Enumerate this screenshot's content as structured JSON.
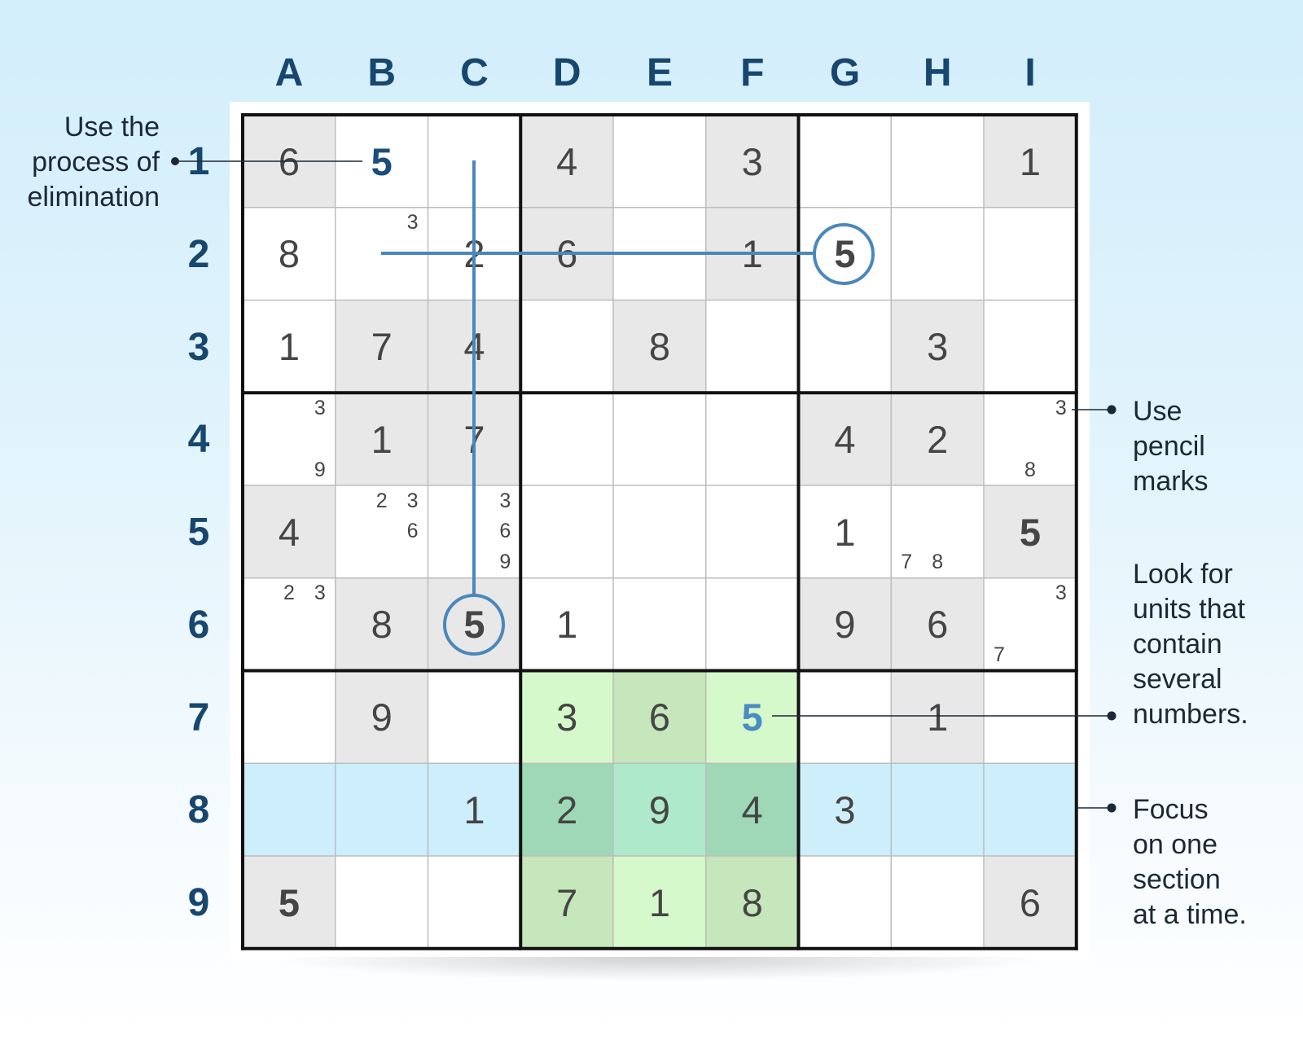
{
  "columns": [
    "A",
    "B",
    "C",
    "D",
    "E",
    "F",
    "G",
    "H",
    "I"
  ],
  "rows": [
    "1",
    "2",
    "3",
    "4",
    "5",
    "6",
    "7",
    "8",
    "9"
  ],
  "board": [
    [
      "6",
      "5",
      "",
      "4",
      "",
      "3",
      "",
      "",
      "1"
    ],
    [
      "8",
      "",
      "2",
      "6",
      "",
      "1",
      "5",
      "",
      ""
    ],
    [
      "1",
      "7",
      "4",
      "",
      "8",
      "",
      "",
      "3",
      ""
    ],
    [
      "",
      "1",
      "7",
      "",
      "",
      "",
      "4",
      "2",
      ""
    ],
    [
      "4",
      "",
      "",
      "",
      "",
      "",
      "1",
      "",
      "5"
    ],
    [
      "",
      "8",
      "5",
      "1",
      "",
      "",
      "9",
      "6",
      ""
    ],
    [
      "",
      "9",
      "",
      "3",
      "6",
      "5",
      "",
      "1",
      ""
    ],
    [
      "",
      "",
      "1",
      "2",
      "9",
      "4",
      "3",
      "",
      ""
    ],
    [
      "5",
      "",
      "",
      "7",
      "1",
      "8",
      "",
      "",
      "6"
    ]
  ],
  "shading": [
    [
      "g",
      "w",
      "w",
      "g",
      "w",
      "g",
      "w",
      "w",
      "g"
    ],
    [
      "w",
      "w",
      "w",
      "g",
      "w",
      "g",
      "w",
      "w",
      "w"
    ],
    [
      "w",
      "g",
      "g",
      "w",
      "g",
      "w",
      "w",
      "g",
      "w"
    ],
    [
      "w",
      "g",
      "g",
      "w",
      "w",
      "w",
      "g",
      "g",
      "w"
    ],
    [
      "g",
      "w",
      "w",
      "w",
      "w",
      "w",
      "w",
      "w",
      "g"
    ],
    [
      "w",
      "g",
      "g",
      "w",
      "w",
      "w",
      "g",
      "g",
      "w"
    ],
    [
      "w",
      "g",
      "w",
      "l1",
      "l2",
      "l1",
      "w",
      "g",
      "w"
    ],
    [
      "b",
      "b",
      "b",
      "d1",
      "d2",
      "d1",
      "b",
      "b",
      "b"
    ],
    [
      "g",
      "w",
      "w",
      "l2",
      "l1",
      "l2",
      "w",
      "w",
      "g"
    ]
  ],
  "shade_colors": {
    "w": "#ffffff",
    "g": "#e8e8e8",
    "b": "#cdeefb",
    "l1": "#d6f9cb",
    "l2": "#c6e6bb",
    "d1": "#9ed8b6",
    "d2": "#afe9cb"
  },
  "pencil_marks": {
    "B2": [
      "3"
    ],
    "A4": [
      "3",
      "9"
    ],
    "I4": [
      "3",
      "8"
    ],
    "B5": [
      "2",
      "3",
      "6"
    ],
    "C5": [
      "3",
      "6",
      "9"
    ],
    "H5": [
      "7",
      "8"
    ],
    "A6": [
      "2",
      "3"
    ],
    "I6": [
      "3",
      "7"
    ]
  },
  "emphasis": {
    "B1": "navy",
    "G2": "bold",
    "I5": "bold",
    "C6": "bold",
    "F7": "blue",
    "A9": "bold"
  },
  "circled_cells": [
    "G2",
    "C6"
  ],
  "accent_color": "#4a87bb",
  "annotations": {
    "elimination": [
      "Use the",
      "process of",
      "elimination"
    ],
    "pencil": [
      "Use",
      "pencil",
      "marks"
    ],
    "units": [
      "Look for",
      "units that",
      "contain",
      "several",
      "numbers."
    ],
    "focus": [
      "Focus",
      "on one",
      "section",
      "at a time."
    ]
  }
}
